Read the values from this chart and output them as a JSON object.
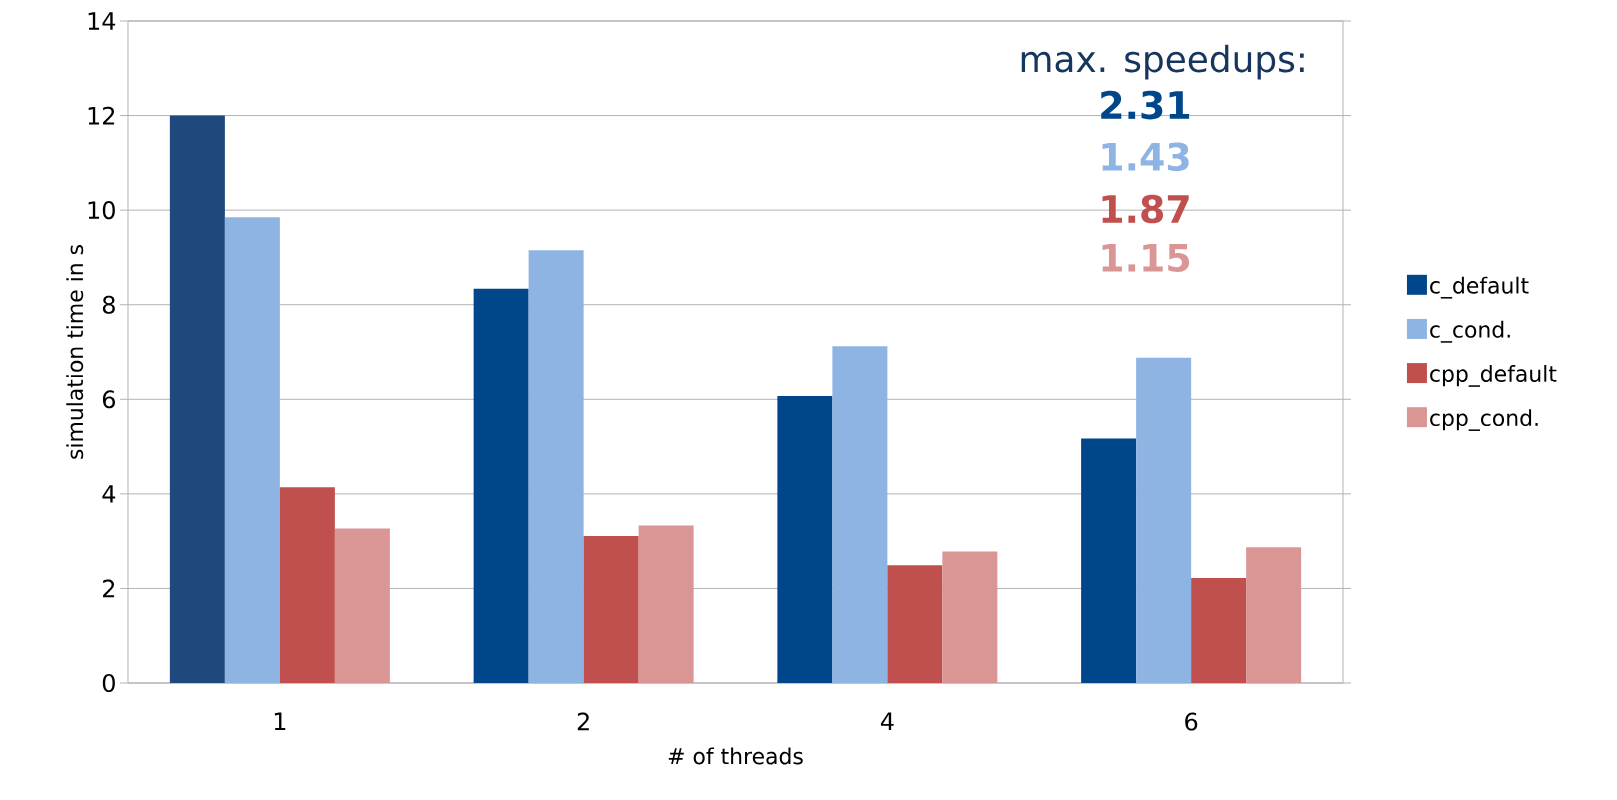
{
  "chart_data": {
    "type": "bar",
    "xlabel": "# of threads",
    "ylabel": "simulation time in s",
    "categories": [
      "1",
      "2",
      "4",
      "6"
    ],
    "series": [
      {
        "name": "c_default",
        "color": "#00468b",
        "colors": [
          "#1f497d",
          "#00468b",
          "#00468b",
          "#00468b"
        ],
        "values": [
          12.0,
          8.34,
          6.07,
          5.17
        ]
      },
      {
        "name": "c_cond.",
        "color": "#8eb4e3",
        "values": [
          9.85,
          9.15,
          7.12,
          6.88
        ]
      },
      {
        "name": "cpp_default",
        "color": "#c0504d",
        "values": [
          4.14,
          3.11,
          2.49,
          2.22
        ]
      },
      {
        "name": "cpp_cond.",
        "color": "#d99694",
        "values": [
          3.27,
          3.33,
          2.78,
          2.87
        ]
      }
    ],
    "ylim": [
      0,
      14
    ],
    "yticks": [
      0,
      2,
      4,
      6,
      8,
      10,
      12,
      14
    ],
    "grid": "y",
    "legend": "right",
    "annotations": [
      "max. speedups:",
      "2.31",
      "1.43",
      "1.87",
      "1.15"
    ]
  }
}
